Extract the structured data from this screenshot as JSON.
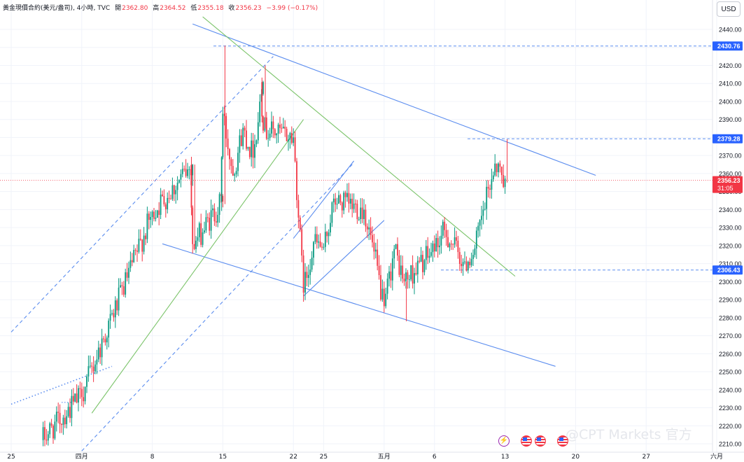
{
  "legend": {
    "symbol": "黃金現價合約(美元/盎司)",
    "interval": "4小時",
    "source": "TVC",
    "open_label": "開",
    "open": "2362.80",
    "high_label": "高",
    "high": "2364.52",
    "low_label": "低",
    "low": "2355.18",
    "close_label": "收",
    "close": "2356.23",
    "change": "−3.99 (−0.17%)"
  },
  "currency_label": "USD",
  "watermark": "@CPT Markets 官方",
  "colors": {
    "up": "#089981",
    "down": "#f23645",
    "trend_blue": "#5b8def",
    "trend_green": "#7cc46b",
    "price_tag_blue": "#2962ff"
  },
  "chart_data": {
    "type": "candlestick",
    "y_axis": {
      "min": 2205,
      "max": 2447,
      "ticks": [
        "2210.00",
        "2220.00",
        "2230.00",
        "2240.00",
        "2250.00",
        "2260.00",
        "2270.00",
        "2280.00",
        "2290.00",
        "2300.00",
        "2310.00",
        "2320.00",
        "2330.00",
        "2340.00",
        "2350.00",
        "2360.00",
        "2370.00",
        "2380.00",
        "2390.00",
        "2400.00",
        "2410.00",
        "2420.00",
        "2430.00",
        "2440.00"
      ]
    },
    "x_axis": {
      "start": "2024-03-25",
      "ticks": [
        {
          "date": "2024-03-25",
          "label": "25"
        },
        {
          "date": "2024-04-01",
          "label": "四月"
        },
        {
          "date": "2024-04-08",
          "label": "8"
        },
        {
          "date": "2024-04-15",
          "label": "15"
        },
        {
          "date": "2024-04-22",
          "label": "22"
        },
        {
          "date": "2024-04-25",
          "label": "25"
        },
        {
          "date": "2024-05-01",
          "label": "五月"
        },
        {
          "date": "2024-05-06",
          "label": "6"
        },
        {
          "date": "2024-05-13",
          "label": "13"
        },
        {
          "date": "2024-05-20",
          "label": "20"
        },
        {
          "date": "2024-05-27",
          "label": "27"
        },
        {
          "date": "2024-06-03",
          "label": "六月"
        }
      ]
    },
    "price_tags": [
      {
        "label": "2430.76",
        "value": 2430.76,
        "style": "blue-dashed"
      },
      {
        "label": "2379.28",
        "value": 2379.28,
        "style": "blue-dashed"
      },
      {
        "label": "2356.23",
        "sub": "31:05",
        "value": 2356.23,
        "style": "current"
      },
      {
        "label": "2306.43",
        "value": 2306.43,
        "style": "blue-dashed"
      }
    ],
    "segments": [
      {
        "start": "2024-03-28",
        "start_price": 2212,
        "end": "2024-04-01",
        "end_price": 2237
      },
      {
        "start": "2024-04-01",
        "start_price": 2237,
        "end": "2024-04-08",
        "end_price": 2338
      },
      {
        "start": "2024-04-08",
        "start_price": 2338,
        "end": "2024-04-12",
        "end_price": 2365
      },
      {
        "start": "2024-04-12",
        "start_price": 2365,
        "end": "2024-04-12",
        "end_price": 2320
      },
      {
        "start": "2024-04-12",
        "start_price": 2320,
        "end": "2024-04-15",
        "end_price": 2345
      },
      {
        "start": "2024-04-15",
        "start_price": 2345,
        "end": "2024-04-15",
        "end_price": 2393
      },
      {
        "start": "2024-04-15",
        "start_price": 2393,
        "end": "2024-04-16",
        "end_price": 2360
      },
      {
        "start": "2024-04-16",
        "start_price": 2360,
        "end": "2024-04-17",
        "end_price": 2385
      },
      {
        "start": "2024-04-17",
        "start_price": 2385,
        "end": "2024-04-18",
        "end_price": 2370
      },
      {
        "start": "2024-04-18",
        "start_price": 2370,
        "end": "2024-04-19",
        "end_price": 2412
      },
      {
        "start": "2024-04-19",
        "start_price": 2412,
        "end": "2024-04-19",
        "end_price": 2385
      },
      {
        "start": "2024-04-19",
        "start_price": 2385,
        "end": "2024-04-22",
        "end_price": 2380
      },
      {
        "start": "2024-04-22",
        "start_price": 2380,
        "end": "2024-04-23",
        "end_price": 2295
      },
      {
        "start": "2024-04-23",
        "start_price": 2295,
        "end": "2024-04-24",
        "end_price": 2322
      },
      {
        "start": "2024-04-24",
        "start_price": 2322,
        "end": "2024-04-25",
        "end_price": 2318
      },
      {
        "start": "2024-04-25",
        "start_price": 2318,
        "end": "2024-04-26",
        "end_price": 2345
      },
      {
        "start": "2024-04-26",
        "start_price": 2345,
        "end": "2024-04-29",
        "end_price": 2340
      },
      {
        "start": "2024-04-29",
        "start_price": 2340,
        "end": "2024-04-30",
        "end_price": 2316
      },
      {
        "start": "2024-04-30",
        "start_price": 2316,
        "end": "2024-05-01",
        "end_price": 2285
      },
      {
        "start": "2024-05-01",
        "start_price": 2285,
        "end": "2024-05-02",
        "end_price": 2318
      },
      {
        "start": "2024-05-02",
        "start_price": 2318,
        "end": "2024-05-03",
        "end_price": 2300
      },
      {
        "start": "2024-05-03",
        "start_price": 2300,
        "end": "2024-05-06",
        "end_price": 2318
      },
      {
        "start": "2024-05-06",
        "start_price": 2318,
        "end": "2024-05-07",
        "end_price": 2328
      },
      {
        "start": "2024-05-07",
        "start_price": 2328,
        "end": "2024-05-09",
        "end_price": 2310
      },
      {
        "start": "2024-05-09",
        "start_price": 2310,
        "end": "2024-05-10",
        "end_price": 2318
      },
      {
        "start": "2024-05-10",
        "start_price": 2318,
        "end": "2024-05-12",
        "end_price": 2366
      },
      {
        "start": "2024-05-12",
        "start_price": 2366,
        "end": "2024-05-13",
        "end_price": 2356.23
      }
    ],
    "drawings": [
      {
        "kind": "line",
        "color": "blue",
        "dash": false,
        "start": "2024-04-12",
        "start_price": 2443,
        "end": "2024-05-22",
        "end_price": 2359
      },
      {
        "kind": "line",
        "color": "blue",
        "dash": false,
        "start": "2024-04-09",
        "start_price": 2321,
        "end": "2024-05-18",
        "end_price": 2253
      },
      {
        "kind": "line",
        "color": "green",
        "dash": false,
        "start": "2024-04-13",
        "start_price": 2447,
        "end": "2024-05-14",
        "end_price": 2303
      },
      {
        "kind": "line",
        "color": "green",
        "dash": false,
        "start": "2024-04-02",
        "start_price": 2227,
        "end": "2024-04-23",
        "end_price": 2390
      },
      {
        "kind": "line",
        "color": "blue",
        "dash": false,
        "start": "2024-04-23",
        "start_price": 2292,
        "end": "2024-05-01",
        "end_price": 2334
      },
      {
        "kind": "line",
        "color": "blue",
        "dash": false,
        "start": "2024-04-22",
        "start_price": 2324,
        "end": "2024-04-28",
        "end_price": 2367
      },
      {
        "kind": "line",
        "color": "blue",
        "dash": true,
        "start": "2024-03-25",
        "start_price": 2272,
        "end": "2024-04-20",
        "end_price": 2425
      },
      {
        "kind": "line",
        "color": "blue",
        "dash": true,
        "start": "2024-04-01",
        "start_price": 2206,
        "end": "2024-04-28",
        "end_price": 2366
      },
      {
        "kind": "line",
        "color": "blue",
        "dash": "dot",
        "start": "2024-03-25",
        "start_price": 2232,
        "end": "2024-04-04",
        "end_price": 2253
      }
    ]
  }
}
